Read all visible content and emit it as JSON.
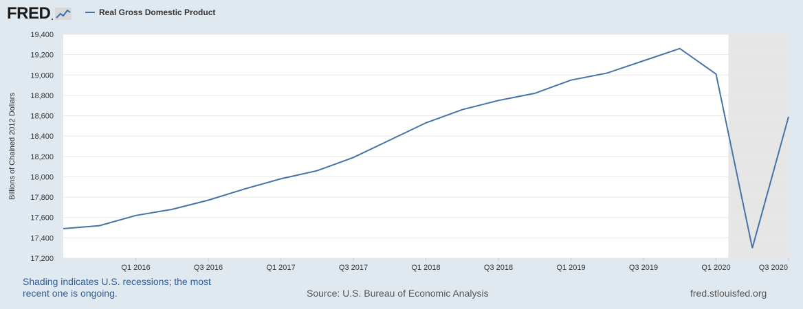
{
  "header": {
    "logo_text": "FRED",
    "logo_dot": ".",
    "logo_icon": "line-graph-icon",
    "legend_label": "Real Gross Domestic Product"
  },
  "colors": {
    "background": "#e1e9f0",
    "plot_background": "#ffffff",
    "series_line": "#4572a7",
    "recession_shading": "#e6e6e6",
    "gridline": "#e8e8e8",
    "footer_note": "#2e5c99"
  },
  "footer": {
    "note": "Shading indicates U.S. recessions; the most recent one is ongoing.",
    "source": "Source: U.S. Bureau of Economic Analysis",
    "site": "fred.stlouisfed.org"
  },
  "chart_data": {
    "type": "line",
    "title": "",
    "xlabel": "",
    "ylabel": "Billions of Chained 2012 Dollars",
    "ylim": [
      17200,
      19400
    ],
    "y_ticks": [
      17200,
      17400,
      17600,
      17800,
      18000,
      18200,
      18400,
      18600,
      18800,
      19000,
      19200,
      19400
    ],
    "y_tick_labels": [
      "17,200",
      "17,400",
      "17,600",
      "17,800",
      "18,000",
      "18,200",
      "18,400",
      "18,600",
      "18,800",
      "19,000",
      "19,200",
      "19,400"
    ],
    "x": [
      "Q3 2015",
      "Q4 2015",
      "Q1 2016",
      "Q2 2016",
      "Q3 2016",
      "Q4 2016",
      "Q1 2017",
      "Q2 2017",
      "Q3 2017",
      "Q4 2017",
      "Q1 2018",
      "Q2 2018",
      "Q3 2018",
      "Q4 2018",
      "Q1 2019",
      "Q2 2019",
      "Q3 2019",
      "Q4 2019",
      "Q1 2020",
      "Q2 2020",
      "Q3 2020"
    ],
    "x_tick_labels": [
      "Q1 2016",
      "Q3 2016",
      "Q1 2017",
      "Q3 2017",
      "Q1 2018",
      "Q3 2018",
      "Q1 2019",
      "Q3 2019",
      "Q1 2020",
      "Q3 2020"
    ],
    "series": [
      {
        "name": "Real Gross Domestic Product",
        "values": [
          17490,
          17520,
          17620,
          17680,
          17770,
          17880,
          17980,
          18060,
          18190,
          18360,
          18530,
          18660,
          18750,
          18820,
          18950,
          19020,
          19140,
          19260,
          19010,
          17300,
          18590
        ]
      }
    ],
    "recession": {
      "start": "Q1 2020",
      "end": "Q3 2020"
    },
    "grid": true,
    "legend": "top-left"
  }
}
